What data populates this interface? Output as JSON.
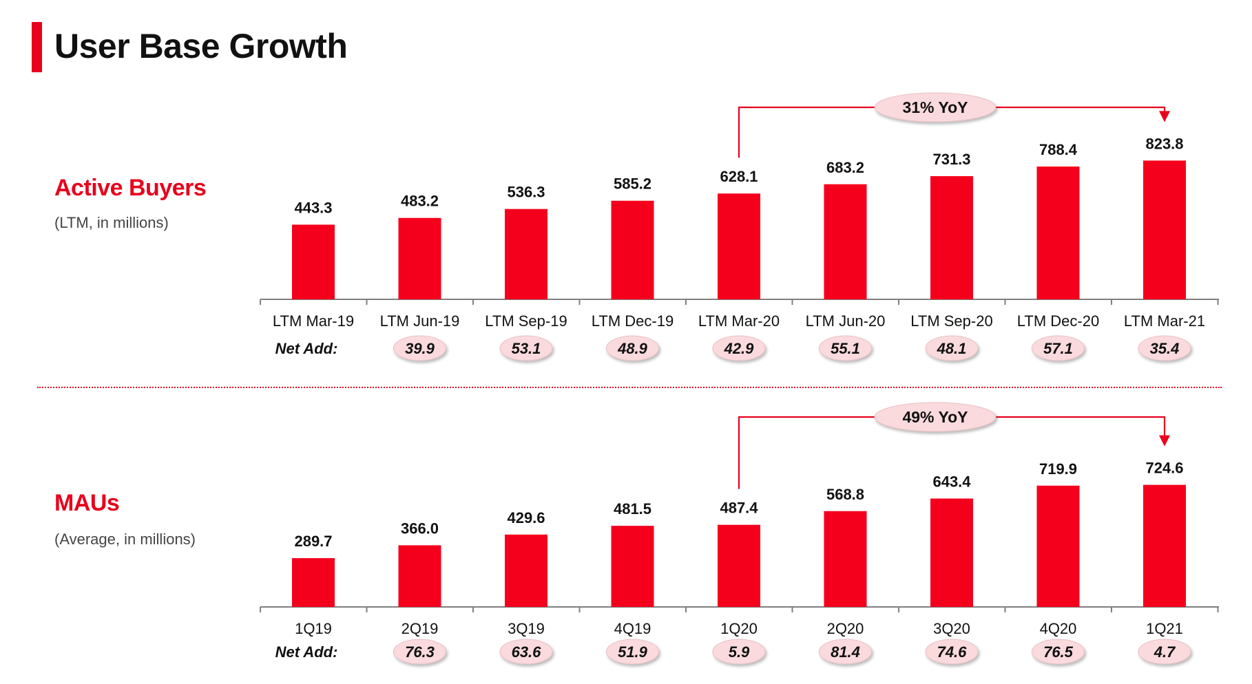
{
  "page": {
    "title": "User Base Growth",
    "accent_color": "#e8001c"
  },
  "chart_data": [
    {
      "type": "bar",
      "title": "Active Buyers",
      "subtitle": "(LTM, in millions)",
      "categories": [
        "LTM Mar-19",
        "LTM Jun-19",
        "LTM Sep-19",
        "LTM Dec-19",
        "LTM Mar-20",
        "LTM Jun-20",
        "LTM Sep-20",
        "LTM Dec-20",
        "LTM Mar-21"
      ],
      "values": [
        443.3,
        483.2,
        536.3,
        585.2,
        628.1,
        683.2,
        731.3,
        788.4,
        823.8
      ],
      "value_labels": [
        "443.3",
        "483.2",
        "536.3",
        "585.2",
        "628.1",
        "683.2",
        "731.3",
        "788.4",
        "823.8"
      ],
      "net_add_label": "Net Add:",
      "net_add": [
        "",
        "39.9",
        "53.1",
        "48.9",
        "42.9",
        "55.1",
        "48.1",
        "57.1",
        "35.4"
      ],
      "yoy": {
        "label": "31% YoY",
        "from_index": 4,
        "to_index": 8
      },
      "ylim": [
        0,
        900
      ],
      "bar_color": "#f5001c"
    },
    {
      "type": "bar",
      "title": "MAUs",
      "subtitle": "(Average, in millions)",
      "categories": [
        "1Q19",
        "2Q19",
        "3Q19",
        "4Q19",
        "1Q20",
        "2Q20",
        "3Q20",
        "4Q20",
        "1Q21"
      ],
      "values": [
        289.7,
        366.0,
        429.6,
        481.5,
        487.4,
        568.8,
        643.4,
        719.9,
        724.6
      ],
      "value_labels": [
        "289.7",
        "366.0",
        "429.6",
        "481.5",
        "487.4",
        "568.8",
        "643.4",
        "719.9",
        "724.6"
      ],
      "net_add_label": "Net Add:",
      "net_add": [
        "",
        "76.3",
        "63.6",
        "51.9",
        "5.9",
        "81.4",
        "74.6",
        "76.5",
        "4.7"
      ],
      "yoy": {
        "label": "49% YoY",
        "from_index": 4,
        "to_index": 8
      },
      "ylim": [
        0,
        900
      ],
      "bar_color": "#f5001c"
    }
  ]
}
